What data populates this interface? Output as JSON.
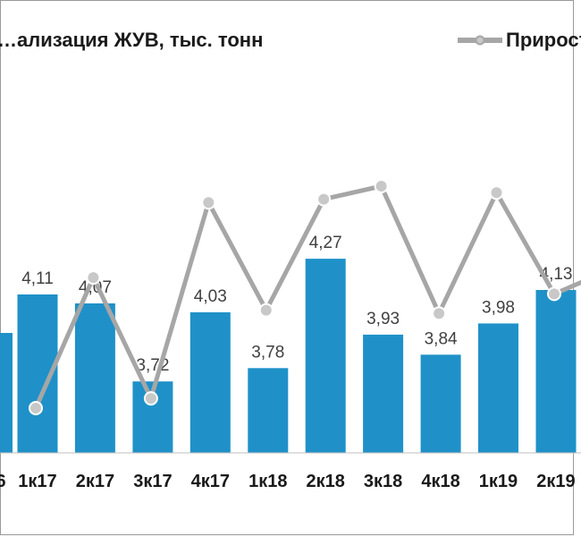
{
  "chart_data": {
    "type": "bar",
    "title": "…ализация ЖУВ, тыс. тонн",
    "legend": {
      "label": "Прирост…",
      "placement": "top-right"
    },
    "left_edge_tick_label": "6",
    "categories": [
      "1к17",
      "2к17",
      "3к17",
      "4к17",
      "1к18",
      "2к18",
      "3к18",
      "4к18",
      "1к19",
      "2к19"
    ],
    "series": [
      {
        "values": [
          4.11,
          4.07,
          3.72,
          4.03,
          3.78,
          4.27,
          3.93,
          3.84,
          3.98,
          4.13
        ],
        "value_labels": [
          "4,11",
          "4,07",
          "3,72",
          "4,03",
          "3,78",
          "4,27",
          "3,93",
          "3,84",
          "3,98",
          "4,13"
        ],
        "color": "#1f91c8"
      },
      {
        "name": "Прирост…",
        "values": [
          0.2,
          0.6,
          0.23,
          0.83,
          0.5,
          0.84,
          0.88,
          0.49,
          0.86,
          0.55
        ],
        "color": "#a6a6a6",
        "marker_fill": "#c8c8c8",
        "value_scale": "relative (no axis printed)"
      }
    ],
    "bar_axis_min_visible": 3.4,
    "grid": false,
    "colors": {
      "bars": "#1f91c8",
      "line": "#a6a6a6",
      "text": "#1a1a1a",
      "label_text": "#404040",
      "axis": "#bfbfbf",
      "border": "#9a9a9a"
    }
  }
}
